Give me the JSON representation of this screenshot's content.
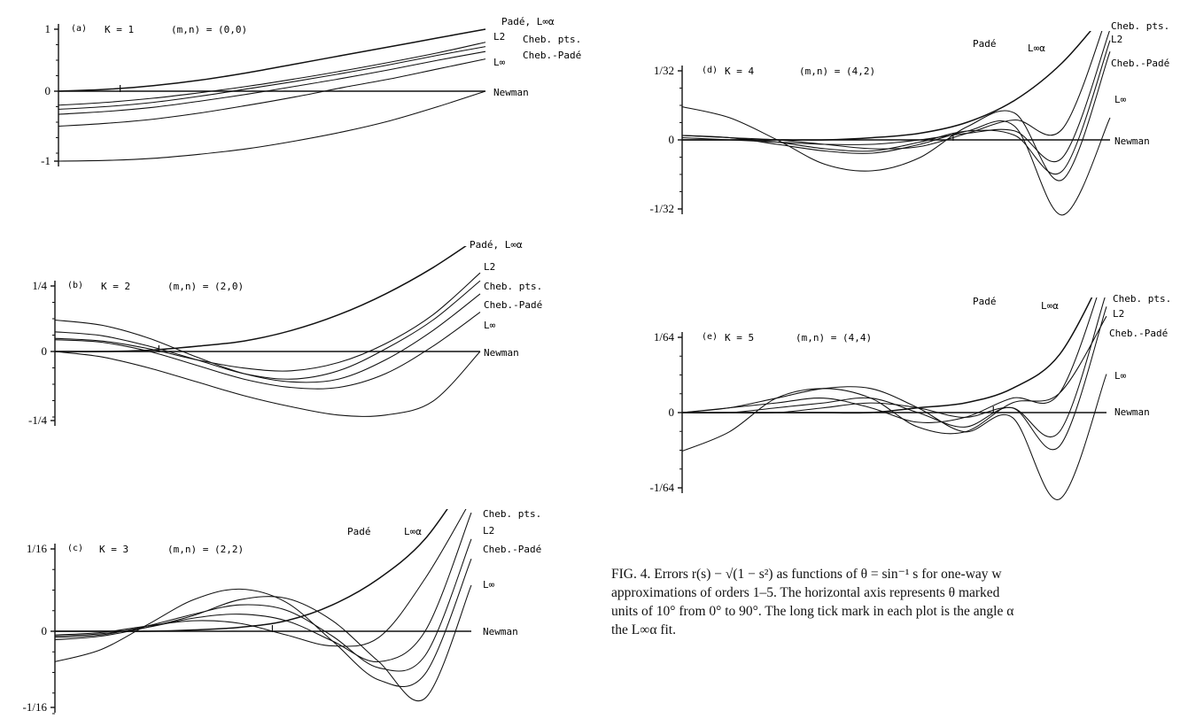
{
  "chart_data": [
    {
      "type": "line",
      "panel": "(a)",
      "K": "K = 1",
      "mn": "(m,n) = (0,0)",
      "ylim": [
        -1,
        1
      ],
      "ytick_labels": [
        "1",
        "0",
        "-1"
      ],
      "yticks": [
        1,
        0,
        -1
      ],
      "xlim": [
        0,
        90
      ],
      "alpha_deg": 13,
      "grid": false,
      "series": [
        {
          "name": "Padé, L∞α",
          "x": [
            0,
            10,
            20,
            30,
            40,
            50,
            60,
            70,
            80,
            90
          ],
          "y": [
            0.0,
            0.03,
            0.09,
            0.18,
            0.3,
            0.44,
            0.58,
            0.72,
            0.86,
            1.0
          ]
        },
        {
          "name": "L2",
          "x": [
            0,
            10,
            20,
            30,
            40,
            50,
            60,
            70,
            80,
            90
          ],
          "y": [
            -0.2,
            -0.16,
            -0.1,
            -0.02,
            0.08,
            0.2,
            0.33,
            0.47,
            0.62,
            0.79
          ]
        },
        {
          "name": "Cheb. pts.",
          "x": [
            0,
            10,
            20,
            30,
            40,
            50,
            60,
            70,
            80,
            90
          ],
          "y": [
            -0.26,
            -0.22,
            -0.16,
            -0.07,
            0.04,
            0.16,
            0.29,
            0.43,
            0.58,
            0.72
          ]
        },
        {
          "name": "Cheb.-Padé",
          "x": [
            0,
            10,
            20,
            30,
            40,
            50,
            60,
            70,
            80,
            90
          ],
          "y": [
            -0.33,
            -0.29,
            -0.23,
            -0.14,
            -0.04,
            0.08,
            0.21,
            0.35,
            0.5,
            0.64
          ]
        },
        {
          "name": "L∞",
          "x": [
            0,
            10,
            20,
            30,
            40,
            50,
            60,
            70,
            80,
            90
          ],
          "y": [
            -0.5,
            -0.46,
            -0.4,
            -0.31,
            -0.2,
            -0.08,
            0.06,
            0.2,
            0.36,
            0.52
          ]
        },
        {
          "name": "Newman",
          "x": [
            0,
            10,
            20,
            30,
            40,
            50,
            60,
            70,
            80,
            90
          ],
          "y": [
            -1.0,
            -0.99,
            -0.96,
            -0.9,
            -0.82,
            -0.71,
            -0.58,
            -0.42,
            -0.22,
            0.0
          ]
        }
      ]
    },
    {
      "type": "line",
      "panel": "(b)",
      "K": "K = 2",
      "mn": "(m,n) = (2,0)",
      "ylim": [
        -0.25,
        0.25
      ],
      "ytick_labels": [
        "1/4",
        "0",
        "-1/4"
      ],
      "yticks": [
        0.25,
        0,
        -0.25
      ],
      "xlim": [
        0,
        90
      ],
      "alpha_deg": 22,
      "grid": false,
      "series": [
        {
          "name": "Padé, L∞α",
          "x": [
            0,
            10,
            20,
            30,
            40,
            50,
            60,
            70,
            80,
            90
          ],
          "y": [
            0.0,
            0.0,
            0.005,
            0.02,
            0.04,
            0.08,
            0.14,
            0.22,
            0.32,
            0.44
          ]
        },
        {
          "name": "L2",
          "x": [
            0,
            10,
            20,
            30,
            40,
            50,
            60,
            70,
            80,
            90
          ],
          "y": [
            0.05,
            0.04,
            0.01,
            -0.03,
            -0.06,
            -0.07,
            -0.04,
            0.03,
            0.14,
            0.3
          ]
        },
        {
          "name": "Cheb. pts.",
          "x": [
            0,
            10,
            20,
            30,
            40,
            50,
            60,
            70,
            80,
            90
          ],
          "y": [
            0.075,
            0.06,
            0.02,
            -0.03,
            -0.08,
            -0.1,
            -0.07,
            0.01,
            0.12,
            0.27
          ]
        },
        {
          "name": "Cheb.-Padé",
          "x": [
            0,
            10,
            20,
            30,
            40,
            50,
            60,
            70,
            80,
            90
          ],
          "y": [
            0.12,
            0.1,
            0.05,
            -0.02,
            -0.08,
            -0.11,
            -0.1,
            -0.03,
            0.08,
            0.22
          ]
        },
        {
          "name": "L∞",
          "x": [
            0,
            10,
            20,
            30,
            40,
            50,
            60,
            70,
            80,
            90
          ],
          "y": [
            0.045,
            0.035,
            0.0,
            -0.05,
            -0.1,
            -0.13,
            -0.13,
            -0.08,
            0.02,
            0.15
          ]
        },
        {
          "name": "Newman",
          "x": [
            0,
            10,
            20,
            30,
            40,
            50,
            60,
            70,
            80,
            90
          ],
          "y": [
            0.0,
            -0.02,
            -0.06,
            -0.11,
            -0.16,
            -0.2,
            -0.23,
            -0.23,
            -0.18,
            0.0
          ]
        }
      ]
    },
    {
      "type": "line",
      "panel": "(c)",
      "K": "K = 3",
      "mn": "(m,n) = (2,2)",
      "ylim": [
        -0.0625,
        0.0625
      ],
      "ytick_labels": [
        "1/16",
        "0",
        "-1/16"
      ],
      "yticks": [
        0.0625,
        0,
        -0.0625
      ],
      "xlim": [
        0,
        90
      ],
      "alpha_deg": 47,
      "grid": false,
      "series": [
        {
          "name": "Padé",
          "x": [
            0,
            10,
            20,
            30,
            40,
            50,
            60,
            70,
            80,
            90
          ],
          "y": [
            0.0,
            0.0,
            0.0,
            0.001,
            0.003,
            0.008,
            0.02,
            0.04,
            0.07,
            0.12
          ]
        },
        {
          "name": "L∞α",
          "x": [
            0,
            10,
            20,
            30,
            40,
            50,
            60,
            70,
            80,
            90
          ],
          "y": [
            -0.003,
            -0.001,
            0.004,
            0.008,
            0.006,
            -0.003,
            -0.012,
            -0.005,
            0.04,
            0.1
          ]
        },
        {
          "name": "Cheb. pts.",
          "x": [
            0,
            10,
            20,
            30,
            40,
            50,
            60,
            70,
            80,
            90
          ],
          "y": [
            -0.004,
            -0.002,
            0.003,
            0.01,
            0.013,
            0.008,
            -0.008,
            -0.025,
            0.0,
            0.09
          ]
        },
        {
          "name": "L2",
          "x": [
            0,
            10,
            20,
            30,
            40,
            50,
            60,
            70,
            80,
            90
          ],
          "y": [
            -0.005,
            -0.003,
            0.004,
            0.013,
            0.02,
            0.016,
            -0.004,
            -0.03,
            -0.02,
            0.07
          ]
        },
        {
          "name": "Cheb.-Padé",
          "x": [
            0,
            10,
            20,
            30,
            40,
            50,
            60,
            70,
            80,
            90
          ],
          "y": [
            -0.025,
            -0.015,
            0.005,
            0.024,
            0.032,
            0.022,
            -0.008,
            -0.04,
            -0.035,
            0.055
          ]
        },
        {
          "name": "L∞",
          "x": [
            0,
            10,
            20,
            30,
            40,
            50,
            60,
            70,
            80,
            90
          ],
          "y": [
            -0.007,
            -0.004,
            0.003,
            0.012,
            0.024,
            0.025,
            0.008,
            -0.025,
            -0.055,
            0.035
          ]
        },
        {
          "name": "Newman",
          "x": [
            0,
            10,
            20,
            30,
            40,
            50,
            60,
            70,
            80,
            90
          ],
          "y": [
            0.0,
            0.0,
            0.0,
            0.0,
            0.0,
            0.0,
            0.0,
            0.0,
            0.0,
            0.0
          ]
        }
      ]
    },
    {
      "type": "line",
      "panel": "(d)",
      "K": "K = 4",
      "mn": "(m,n) = (4,2)",
      "ylim": [
        -0.03125,
        0.03125
      ],
      "ytick_labels": [
        "1/32",
        "0",
        "-1/32"
      ],
      "yticks": [
        0.03125,
        0,
        -0.03125
      ],
      "xlim": [
        0,
        90
      ],
      "alpha_deg": 57,
      "grid": false,
      "series": [
        {
          "name": "Padé",
          "x": [
            0,
            10,
            20,
            30,
            40,
            50,
            60,
            70,
            80,
            90
          ],
          "y": [
            0.0,
            0.0,
            0.0,
            0.0,
            0.001,
            0.003,
            0.008,
            0.018,
            0.035,
            0.06
          ]
        },
        {
          "name": "L∞α",
          "x": [
            0,
            10,
            20,
            30,
            40,
            50,
            60,
            70,
            80,
            90
          ],
          "y": [
            0.002,
            0.001,
            0.0,
            -0.002,
            -0.004,
            -0.003,
            0.003,
            0.009,
            0.005,
            0.06
          ]
        },
        {
          "name": "Cheb. pts.",
          "x": [
            0,
            10,
            20,
            30,
            40,
            50,
            60,
            70,
            80,
            90
          ],
          "y": [
            0.001,
            0.0,
            -0.001,
            -0.002,
            -0.002,
            0.0,
            0.003,
            0.004,
            -0.008,
            0.05
          ]
        },
        {
          "name": "L2",
          "x": [
            0,
            10,
            20,
            30,
            40,
            50,
            60,
            70,
            80,
            90
          ],
          "y": [
            0.002,
            0.001,
            -0.001,
            -0.004,
            -0.005,
            -0.001,
            0.004,
            0.002,
            -0.014,
            0.045
          ]
        },
        {
          "name": "Cheb.-Padé",
          "x": [
            0,
            10,
            20,
            30,
            40,
            50,
            60,
            70,
            80,
            90
          ],
          "y": [
            0.015,
            0.01,
            0.0,
            -0.011,
            -0.014,
            -0.008,
            0.006,
            0.012,
            -0.018,
            0.04
          ]
        },
        {
          "name": "L∞",
          "x": [
            0,
            10,
            20,
            30,
            40,
            50,
            60,
            70,
            80,
            90
          ],
          "y": [
            0.002,
            0.001,
            -0.002,
            -0.005,
            -0.006,
            -0.002,
            0.004,
            0.006,
            -0.034,
            0.01
          ]
        },
        {
          "name": "Newman",
          "x": [
            0,
            10,
            20,
            30,
            40,
            50,
            60,
            70,
            80,
            90
          ],
          "y": [
            0.0,
            0.0,
            0.0,
            0.0,
            0.0,
            0.0,
            0.0,
            0.0,
            0.0,
            0.0
          ]
        }
      ]
    },
    {
      "type": "line",
      "panel": "(e)",
      "K": "K = 5",
      "mn": "(m,n) = (4,4)",
      "ylim": [
        -0.015625,
        0.015625
      ],
      "ytick_labels": [
        "1/64",
        "0",
        "-1/64"
      ],
      "yticks": [
        0.015625,
        0,
        -0.015625
      ],
      "xlim": [
        0,
        90
      ],
      "alpha_deg": 66,
      "grid": false,
      "series": [
        {
          "name": "Padé",
          "x": [
            0,
            10,
            20,
            30,
            40,
            50,
            60,
            70,
            80,
            90
          ],
          "y": [
            0.0,
            0.0,
            0.0,
            0.0,
            0.0,
            0.001,
            0.002,
            0.005,
            0.012,
            0.03
          ]
        },
        {
          "name": "L∞α",
          "x": [
            0,
            10,
            20,
            30,
            40,
            50,
            60,
            70,
            80,
            90
          ],
          "y": [
            0.0,
            0.001,
            0.002,
            0.003,
            0.001,
            -0.002,
            -0.001,
            0.003,
            0.004,
            0.03
          ]
        },
        {
          "name": "Cheb. pts.",
          "x": [
            0,
            10,
            20,
            30,
            40,
            50,
            60,
            70,
            80,
            90
          ],
          "y": [
            0.0,
            0.0,
            0.0,
            0.001,
            0.002,
            0.001,
            -0.001,
            0.001,
            -0.004,
            0.025
          ]
        },
        {
          "name": "L2",
          "x": [
            0,
            10,
            20,
            30,
            40,
            50,
            60,
            70,
            80,
            90
          ],
          "y": [
            0.0,
            0.0,
            0.001,
            0.002,
            0.003,
            0.0,
            -0.003,
            0.001,
            -0.007,
            0.022
          ]
        },
        {
          "name": "Cheb.-Padé",
          "x": [
            0,
            10,
            20,
            30,
            40,
            50,
            60,
            70,
            80,
            90
          ],
          "y": [
            -0.008,
            -0.004,
            0.003,
            0.005,
            0.003,
            -0.003,
            -0.004,
            0.002,
            0.004,
            0.02
          ]
        },
        {
          "name": "L∞",
          "x": [
            0,
            10,
            20,
            30,
            40,
            50,
            60,
            70,
            80,
            90
          ],
          "y": [
            0.0,
            0.001,
            0.003,
            0.005,
            0.005,
            0.001,
            -0.004,
            -0.001,
            -0.018,
            0.008
          ]
        },
        {
          "name": "Newman",
          "x": [
            0,
            10,
            20,
            30,
            40,
            50,
            60,
            70,
            80,
            90
          ],
          "y": [
            0.0,
            0.0,
            0.0,
            0.0,
            0.0,
            0.0,
            0.0,
            0.0,
            0.0,
            0.0
          ]
        }
      ]
    }
  ],
  "caption": "FIG. 4. Errors r(s) − √(1 − s²) as functions of θ = sin⁻¹ s for one-way w\napproximations of orders 1–5. The horizontal axis represents θ marked\nunits of 10° from 0° to 90°. The long tick mark in each plot is the angle α\nthe L∞α fit."
}
